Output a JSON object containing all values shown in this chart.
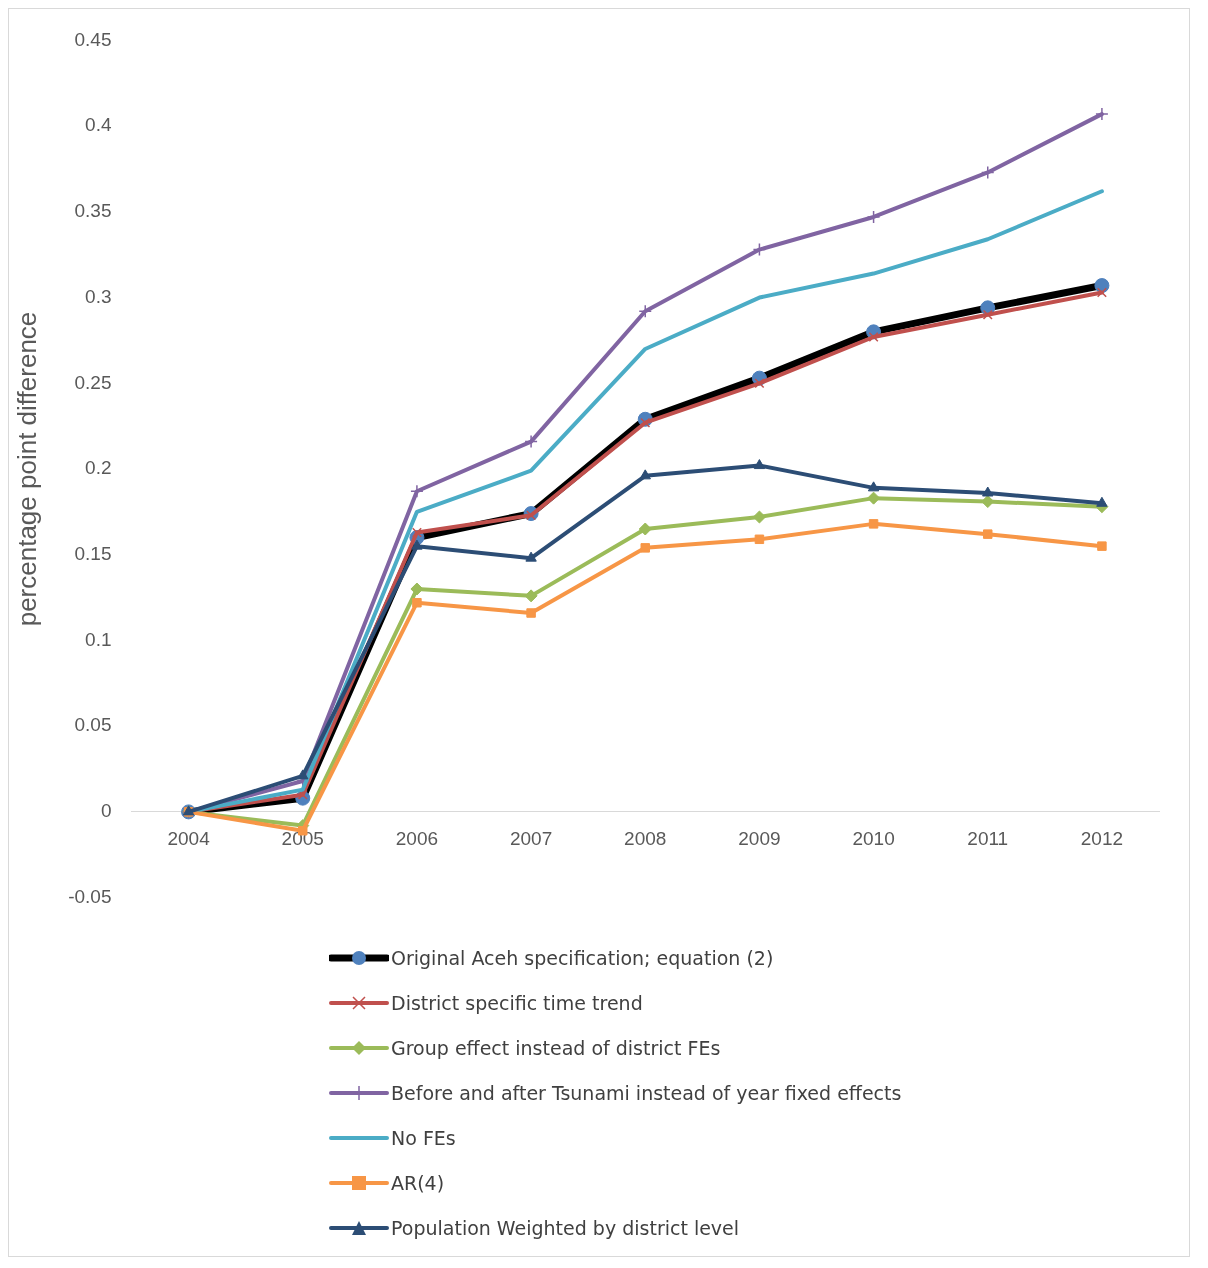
{
  "chart_data": {
    "type": "line",
    "ylabel": "percentage point difference",
    "categories": [
      "2004",
      "2005",
      "2006",
      "2007",
      "2008",
      "2009",
      "2010",
      "2011",
      "2012"
    ],
    "ylim": [
      -0.05,
      0.45
    ],
    "yticks": [
      -0.05,
      0,
      0.05,
      0.1,
      0.15,
      0.2,
      0.25,
      0.3,
      0.35,
      0.4,
      0.45
    ],
    "grid": false,
    "legend": "bottom",
    "series": [
      {
        "name": "Original Aceh specification; equation (2)",
        "color": "#000000",
        "colors": [
          "#4f81bd",
          "#4f81bd",
          "#4f81bd",
          "#4f81bd",
          "#4f81bd",
          "#4f81bd",
          "#4f81bd",
          "#4f81bd",
          "#4f81bd"
        ],
        "marker": "circle",
        "values": [
          0,
          0.008,
          0.16,
          0.174,
          0.229,
          0.253,
          0.28,
          0.294,
          0.307
        ]
      },
      {
        "name": "District specific time trend",
        "color": "#c0504d",
        "marker": "x",
        "values": [
          0,
          0.01,
          0.163,
          0.173,
          0.227,
          0.25,
          0.277,
          0.29,
          0.303
        ]
      },
      {
        "name": "Group effect instead of district FEs",
        "color": "#9bbb59",
        "marker": "diamond",
        "values": [
          0,
          -0.008,
          0.13,
          0.126,
          0.165,
          0.172,
          0.183,
          0.181,
          0.178
        ]
      },
      {
        "name": "Before and after Tsunami instead of year fixed effects",
        "color": "#8064a2",
        "marker": "cross",
        "values": [
          0,
          0.018,
          0.187,
          0.216,
          0.292,
          0.328,
          0.347,
          0.373,
          0.407
        ]
      },
      {
        "name": "No FEs",
        "color": "#4bacc6",
        "marker": "none",
        "values": [
          0,
          0.013,
          0.175,
          0.199,
          0.27,
          0.3,
          0.314,
          0.334,
          0.362
        ]
      },
      {
        "name": "AR(4)",
        "color": "#f79646",
        "marker": "square",
        "values": [
          0,
          -0.011,
          0.122,
          0.116,
          0.154,
          0.159,
          0.168,
          0.162,
          0.155
        ]
      },
      {
        "name": "Population Weighted by district level",
        "color": "#2c4d75",
        "marker": "triangle",
        "values": [
          0,
          0.021,
          0.155,
          0.148,
          0.196,
          0.202,
          0.189,
          0.186,
          0.18
        ]
      }
    ]
  }
}
